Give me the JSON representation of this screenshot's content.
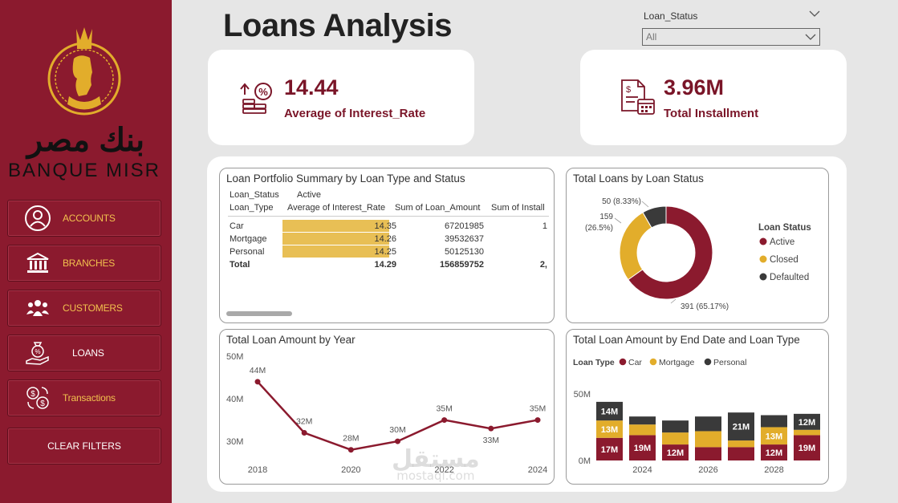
{
  "sidebar": {
    "logo": {
      "arabic": "بنك مصر",
      "latin": "BANQUE MISR"
    },
    "items": [
      {
        "label": "ACCOUNTS",
        "icon": "user-icon"
      },
      {
        "label": "BRANCHES",
        "icon": "bank-building-icon"
      },
      {
        "label": "CUSTOMERS",
        "icon": "people-group-icon"
      },
      {
        "label": "LOANS",
        "icon": "money-hand-icon"
      },
      {
        "label": "Transactions",
        "icon": "money-exchange-icon"
      }
    ],
    "clear_label": "CLEAR FILTERS"
  },
  "header": {
    "title": "Loans Analysis"
  },
  "slicer": {
    "label": "Loan_Status",
    "value": "All"
  },
  "kpis": [
    {
      "value": "14.44",
      "caption": "Average of Interest_Rate",
      "icon": "interest-rate-icon"
    },
    {
      "value": "3.96M",
      "caption": "Total Installment",
      "icon": "invoice-calendar-icon"
    }
  ],
  "colors": {
    "brand": "#8b1a2e",
    "car": "#8b1a2e",
    "mortgage": "#e2ad2b",
    "personal": "#3a3a3a",
    "highlight": "#e8bf55"
  },
  "portfolio_table": {
    "title": "Loan Portfolio Summary by Loan Type and Status",
    "row_header_1": "Loan_Status",
    "row_header_2": "Loan_Type",
    "status_value": "Active",
    "columns": [
      "Average of Interest_Rate",
      "Sum of Loan_Amount",
      "Sum of Install"
    ],
    "rows": [
      {
        "type": "Car",
        "rate": "14.35",
        "amount": "67201985",
        "install": "1"
      },
      {
        "type": "Mortgage",
        "rate": "14.26",
        "amount": "39532637",
        "install": ""
      },
      {
        "type": "Personal",
        "rate": "14.25",
        "amount": "50125130",
        "install": ""
      }
    ],
    "total": {
      "type": "Total",
      "rate": "14.29",
      "amount": "156859752",
      "install": "2,"
    }
  },
  "chart_data": [
    {
      "type": "pie",
      "title": "Total Loans by Loan Status",
      "legend_title": "Loan Status",
      "legend_position": "right",
      "slices": [
        {
          "name": "Active",
          "value": 391,
          "label_count": "391",
          "label_pct": "(65.17%)"
        },
        {
          "name": "Closed",
          "value": 159,
          "label_count": "159",
          "label_pct": "(26.5%)"
        },
        {
          "name": "Defaulted",
          "value": 50,
          "label_count": "50",
          "label_pct": "(8.33%)"
        }
      ]
    },
    {
      "type": "line",
      "title": "Total Loan Amount by Year",
      "x": [
        2018,
        2019,
        2020,
        2021,
        2022,
        2023,
        2024
      ],
      "values": [
        44,
        32,
        28,
        30,
        35,
        33,
        35
      ],
      "data_labels": [
        "44M",
        "32M",
        "28M",
        "30M",
        "35M",
        "33M",
        "35M"
      ],
      "x_ticks": [
        "2018",
        "2020",
        "2022",
        "2024"
      ],
      "y_ticks": [
        {
          "value": 30,
          "label": "30M"
        },
        {
          "value": 40,
          "label": "40M"
        },
        {
          "value": 50,
          "label": "50M"
        }
      ],
      "ylim": [
        27,
        50
      ],
      "grid": false
    },
    {
      "type": "bar",
      "stacked": true,
      "title": "Total Loan Amount by End Date and Loan Type",
      "legend_title": "Loan Type",
      "legend_position": "top-left",
      "categories": [
        2023,
        2024,
        2025,
        2026,
        2027,
        2028,
        2029
      ],
      "x_ticks": [
        "2024",
        "2026",
        "2028"
      ],
      "y_ticks": [
        {
          "value": 0,
          "label": "0M"
        },
        {
          "value": 50,
          "label": "50M"
        }
      ],
      "ylim": [
        0,
        62
      ],
      "series": [
        {
          "name": "Car",
          "values": [
            17,
            19,
            12,
            10,
            10,
            12,
            19
          ],
          "labels": [
            "17M",
            "19M",
            "12M",
            "",
            "",
            "12M",
            "19M"
          ]
        },
        {
          "name": "Mortgage",
          "values": [
            13,
            8,
            9,
            12,
            5,
            13,
            4
          ],
          "labels": [
            "13M",
            "",
            "",
            "",
            "",
            "13M",
            ""
          ]
        },
        {
          "name": "Personal",
          "values": [
            14,
            6,
            9,
            11,
            21,
            9,
            12
          ],
          "labels": [
            "14M",
            "",
            "",
            "",
            "21M",
            "",
            "12M"
          ]
        }
      ]
    }
  ],
  "watermark": {
    "arabic": "مستقل",
    "latin": "mostaql.com"
  }
}
